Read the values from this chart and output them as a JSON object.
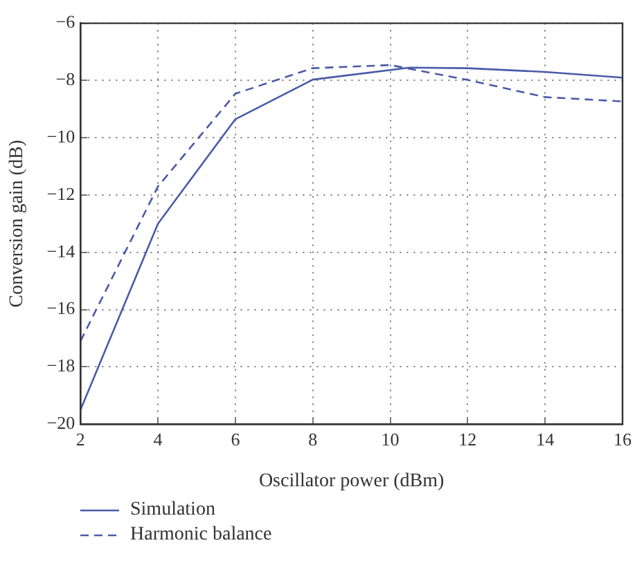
{
  "chart_data": {
    "type": "line",
    "xlabel": "Oscillator power (dBm)",
    "ylabel": "Conversion gain (dB)",
    "xlim": [
      2,
      16
    ],
    "xticks": [
      2,
      4,
      6,
      8,
      10,
      12,
      14,
      16
    ],
    "ylim": [
      -20,
      -6
    ],
    "yticks": [
      -20,
      -18,
      -16,
      -14,
      -12,
      -10,
      -8,
      -6
    ],
    "grid": true,
    "legend": "bottom left",
    "marker": "none",
    "series": [
      {
        "name": "Simulation",
        "color": "#4a5aa8",
        "line_style": "solid",
        "x": [
          2,
          4,
          6,
          8,
          10.5,
          12,
          14,
          16
        ],
        "values": [
          -19.5,
          -13,
          -9.35,
          -7.97,
          -7.55,
          -7.57,
          -7.7,
          -7.9
        ]
      },
      {
        "name": "Harmonic balance",
        "color": "#4a5aa8",
        "line_style": "dashed",
        "x": [
          2,
          4,
          6,
          8,
          10,
          12,
          14,
          16
        ],
        "values": [
          -17.1,
          -11.7,
          -8.46,
          -7.57,
          -7.46,
          -7.98,
          -8.58,
          -8.73
        ]
      }
    ]
  }
}
